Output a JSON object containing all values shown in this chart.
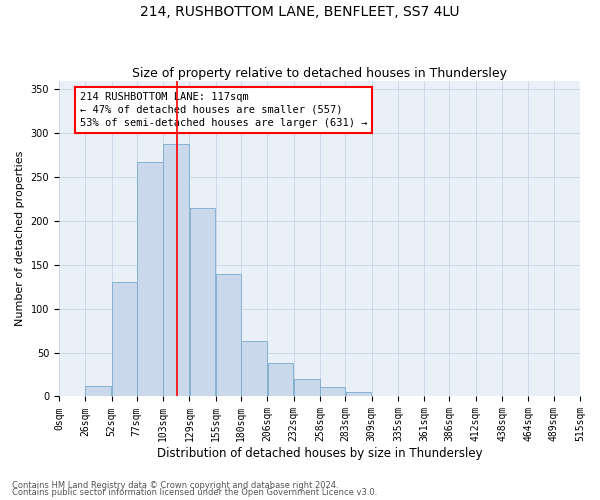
{
  "title1": "214, RUSHBOTTOM LANE, BENFLEET, SS7 4LU",
  "title2": "Size of property relative to detached houses in Thundersley",
  "xlabel": "Distribution of detached houses by size in Thundersley",
  "ylabel": "Number of detached properties",
  "bin_labels": [
    "0sqm",
    "26sqm",
    "52sqm",
    "77sqm",
    "103sqm",
    "129sqm",
    "155sqm",
    "180sqm",
    "206sqm",
    "232sqm",
    "258sqm",
    "283sqm",
    "309sqm",
    "335sqm",
    "361sqm",
    "386sqm",
    "412sqm",
    "438sqm",
    "464sqm",
    "489sqm",
    "515sqm"
  ],
  "bin_edges": [
    0,
    26,
    52,
    77,
    103,
    129,
    155,
    180,
    206,
    232,
    258,
    283,
    309,
    335,
    361,
    386,
    412,
    438,
    464,
    489,
    515
  ],
  "bar_heights": [
    0,
    12,
    130,
    267,
    288,
    215,
    140,
    63,
    38,
    20,
    11,
    5,
    1,
    0,
    0,
    0,
    0,
    0,
    0,
    0
  ],
  "bar_facecolor": "#c9d9eb",
  "bar_edgecolor": "#7aaacb",
  "grid_color": "#c8d4e8",
  "bg_color": "#eaf0f8",
  "red_line_x": 117,
  "annotation_text": "214 RUSHBOTTOM LANE: 117sqm\n← 47% of detached houses are smaller (557)\n53% of semi-detached houses are larger (631) →",
  "ylim": [
    0,
    360
  ],
  "yticks": [
    0,
    50,
    100,
    150,
    200,
    250,
    300,
    350
  ],
  "footer1": "Contains HM Land Registry data © Crown copyright and database right 2024.",
  "footer2": "Contains public sector information licensed under the Open Government Licence v3.0.",
  "title1_fontsize": 10,
  "title2_fontsize": 9,
  "xlabel_fontsize": 8.5,
  "ylabel_fontsize": 8,
  "tick_fontsize": 7,
  "annotation_fontsize": 7.5,
  "footer_fontsize": 6
}
